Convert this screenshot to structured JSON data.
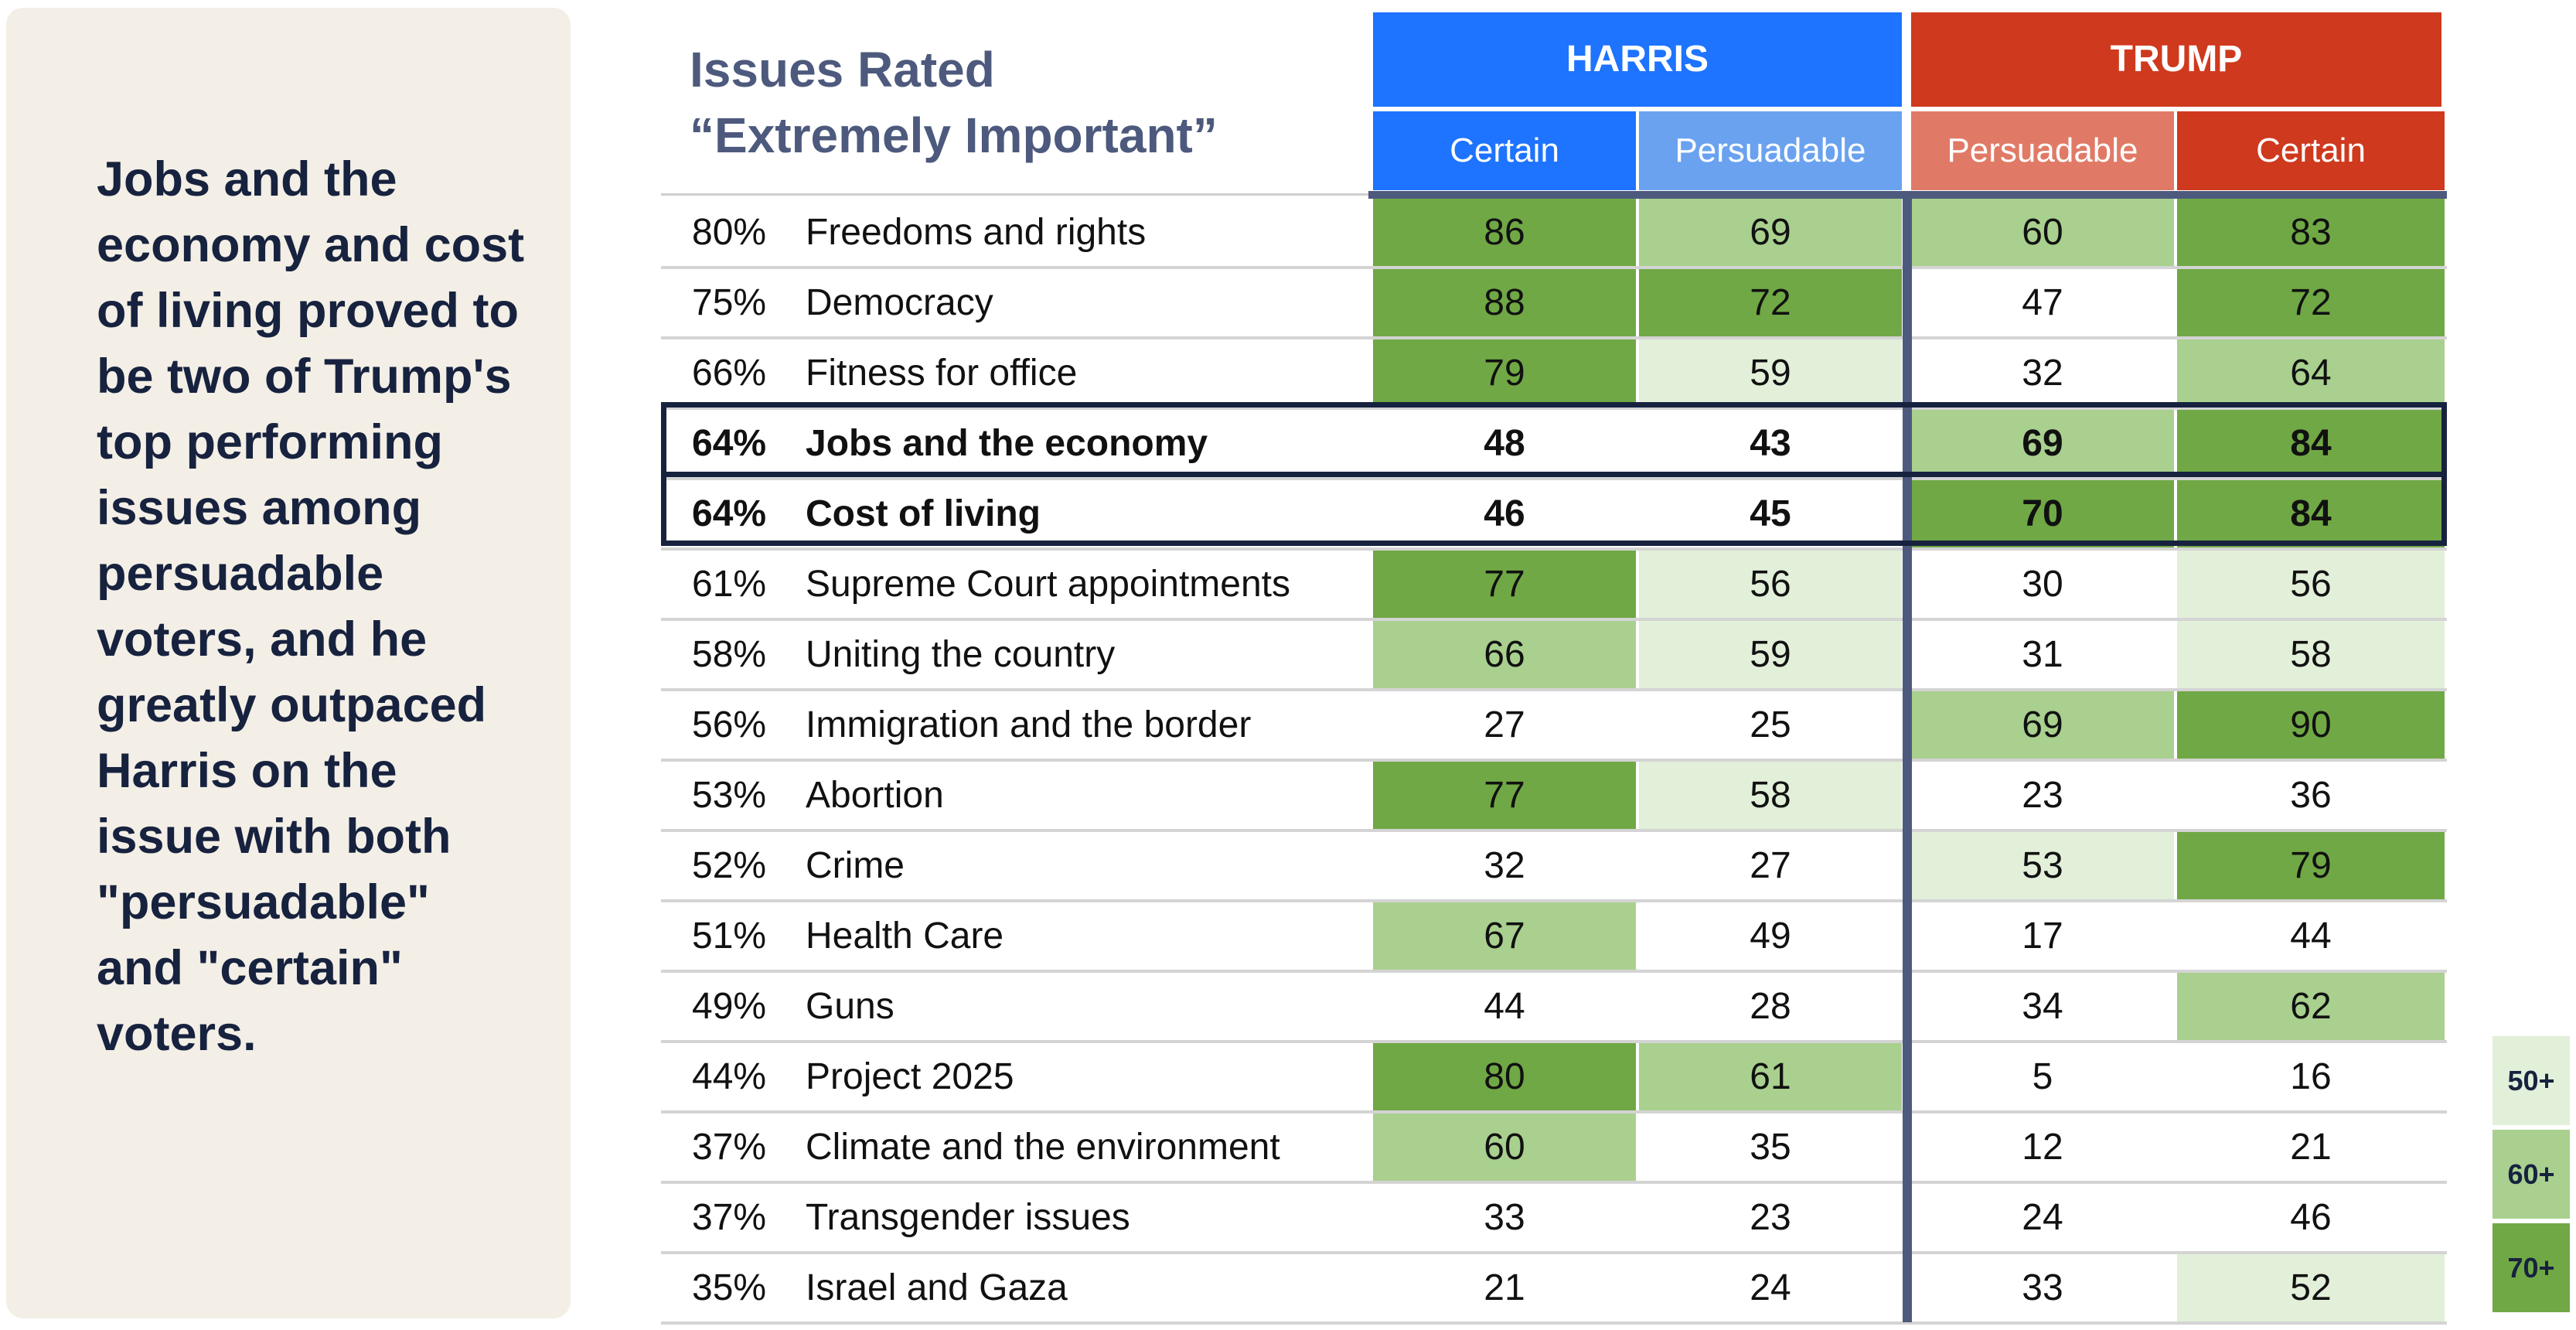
{
  "side_note": "Jobs and the economy and cost of living proved to be two of Trump's top performing issues among persuadable voters, and he greatly outpaced Harris on the issue with both \"persuadable\" and \"certain\" voters.",
  "title_line1": "Issues Rated",
  "title_line2": "“Extremely Important”",
  "headers": {
    "harris": "HARRIS",
    "trump": "TRUMP",
    "columns": [
      "Certain",
      "Persuadable",
      "Persuadable",
      "Certain"
    ]
  },
  "colors": {
    "harris_group": "#1e73ff",
    "harris_certain": "#1e73ff",
    "harris_persuadable": "#6aa2f0",
    "trump_group": "#cf391d",
    "trump_persuadable": "#e07a66",
    "trump_certain": "#cf391d",
    "shade_70": "#70a845",
    "shade_60": "#a9d08e",
    "shade_50": "#e2efd9",
    "outline": "#17223f",
    "divider": "#4d5a7d"
  },
  "legend": [
    "50+",
    "60+",
    "70+"
  ],
  "chart_data": {
    "type": "table",
    "title": "Issues Rated “Extremely Important”",
    "columns": [
      "Harris Certain",
      "Harris Persuadable",
      "Trump Persuadable",
      "Trump Certain"
    ],
    "shading_thresholds": [
      50,
      60,
      70
    ],
    "highlighted_rows": [
      "Jobs and the economy",
      "Cost of living"
    ],
    "rows": [
      {
        "pct": "80%",
        "issue": "Freedoms and rights",
        "values": [
          86,
          69,
          60,
          83
        ]
      },
      {
        "pct": "75%",
        "issue": "Democracy",
        "values": [
          88,
          72,
          47,
          72
        ]
      },
      {
        "pct": "66%",
        "issue": "Fitness for office",
        "values": [
          79,
          59,
          32,
          64
        ]
      },
      {
        "pct": "64%",
        "issue": "Jobs and the economy",
        "values": [
          48,
          43,
          69,
          84
        ],
        "bold": true
      },
      {
        "pct": "64%",
        "issue": "Cost of living",
        "values": [
          46,
          45,
          70,
          84
        ],
        "bold": true
      },
      {
        "pct": "61%",
        "issue": "Supreme Court appointments",
        "values": [
          77,
          56,
          30,
          56
        ]
      },
      {
        "pct": "58%",
        "issue": "Uniting the country",
        "values": [
          66,
          59,
          31,
          58
        ]
      },
      {
        "pct": "56%",
        "issue": "Immigration and the border",
        "values": [
          27,
          25,
          69,
          90
        ]
      },
      {
        "pct": "53%",
        "issue": "Abortion",
        "values": [
          77,
          58,
          23,
          36
        ]
      },
      {
        "pct": "52%",
        "issue": "Crime",
        "values": [
          32,
          27,
          53,
          79
        ]
      },
      {
        "pct": "51%",
        "issue": "Health Care",
        "values": [
          67,
          49,
          17,
          44
        ]
      },
      {
        "pct": "49%",
        "issue": "Guns",
        "values": [
          44,
          28,
          34,
          62
        ]
      },
      {
        "pct": "44%",
        "issue": "Project 2025",
        "values": [
          80,
          61,
          5,
          16
        ]
      },
      {
        "pct": "37%",
        "issue": "Climate and the environment",
        "values": [
          60,
          35,
          12,
          21
        ]
      },
      {
        "pct": "37%",
        "issue": "Transgender issues",
        "values": [
          33,
          23,
          24,
          46
        ]
      },
      {
        "pct": "35%",
        "issue": "Israel and Gaza",
        "values": [
          21,
          24,
          33,
          52
        ]
      }
    ]
  }
}
